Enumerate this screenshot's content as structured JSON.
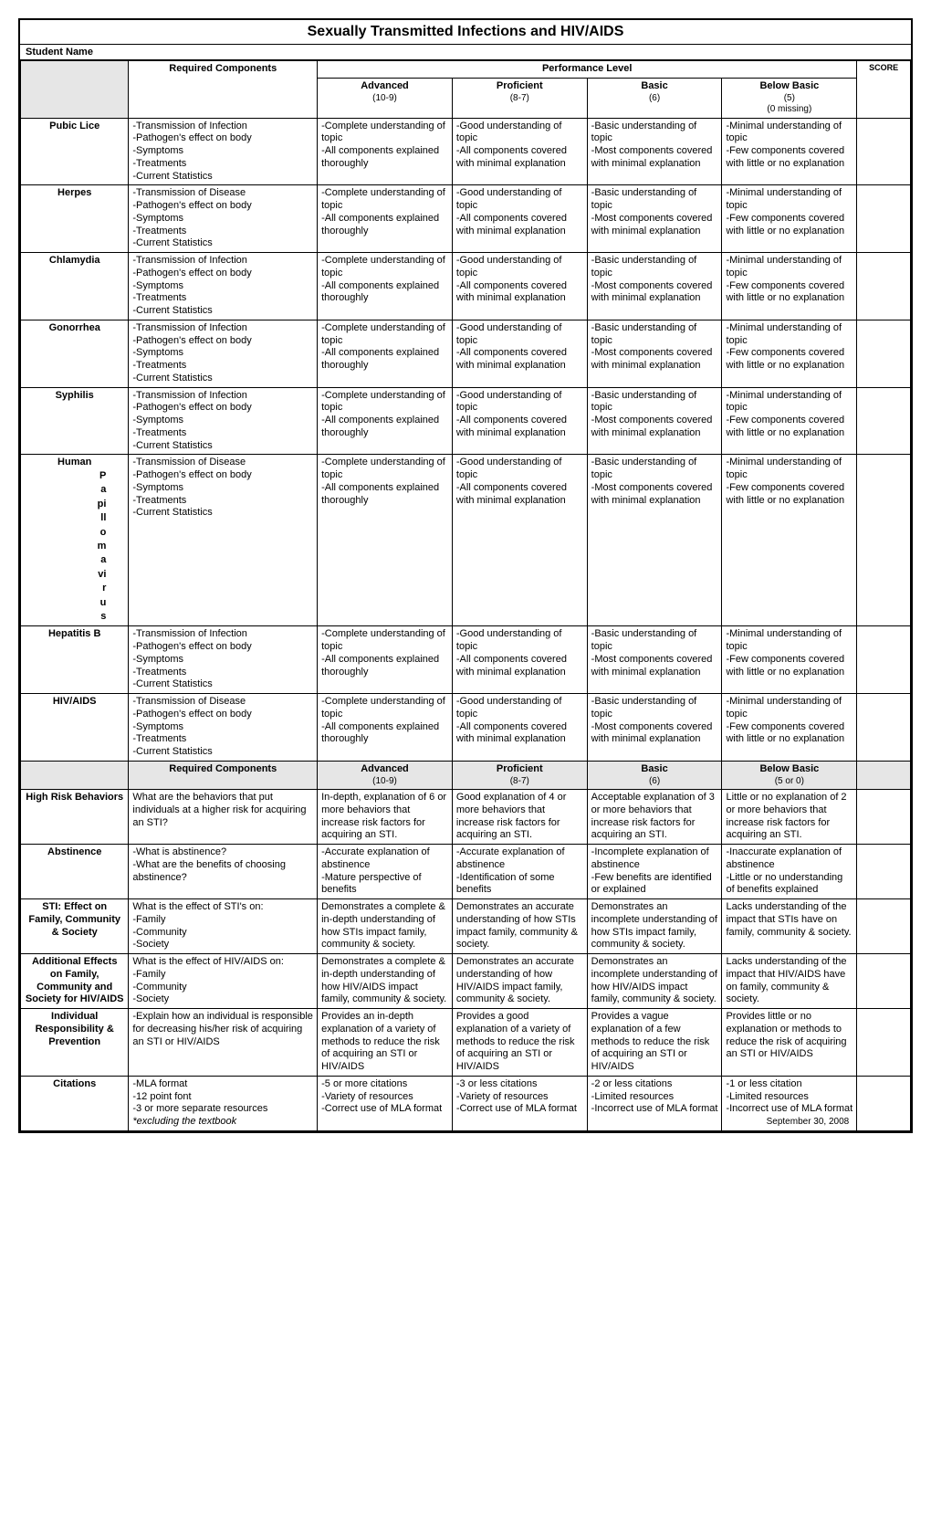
{
  "title": "Sexually Transmitted Infections and HIV/AIDS",
  "student_name_label": "Student Name",
  "headers": {
    "required_components": "Required Components",
    "performance_level": "Performance Level",
    "score": "SCORE",
    "levels": [
      {
        "name": "Advanced",
        "range": "(10-9)"
      },
      {
        "name": "Proficient",
        "range": "(8-7)"
      },
      {
        "name": "Basic",
        "range": "(6)"
      },
      {
        "name": "Below Basic",
        "range": "(5)\n(0 missing)"
      }
    ],
    "levels2": [
      {
        "name": "Advanced",
        "range": "(10-9)"
      },
      {
        "name": "Proficient",
        "range": "(8-7)"
      },
      {
        "name": "Basic",
        "range": "(6)"
      },
      {
        "name": "Below Basic",
        "range": "(5 or 0)"
      }
    ]
  },
  "components_infection": "-Transmission of Infection\n-Pathogen's effect on body\n-Symptoms\n-Treatments\n-Current Statistics",
  "components_disease": "-Transmission of Disease\n-Pathogen's effect on body\n-Symptoms\n-Treatments\n-Current Statistics",
  "level_text": {
    "advanced": "-Complete understanding of topic\n-All components explained thoroughly",
    "proficient": "-Good understanding of topic\n-All components covered with minimal explanation",
    "basic": "-Basic understanding of topic\n-Most components covered with minimal explanation",
    "below": "-Minimal understanding of topic\n-Few components covered with little or no explanation"
  },
  "topics": [
    {
      "name": "Pubic Lice",
      "comp": "infection"
    },
    {
      "name": "Herpes",
      "comp": "disease"
    },
    {
      "name": "Chlamydia",
      "comp": "infection"
    },
    {
      "name": "Gonorrhea",
      "comp": "infection"
    },
    {
      "name": "Syphilis",
      "comp": "infection"
    },
    {
      "name": "Human",
      "vert": "Papillomavirus",
      "comp": "disease"
    },
    {
      "name": "Hepatitis B",
      "comp": "infection"
    },
    {
      "name": "HIV/AIDS",
      "comp": "disease"
    }
  ],
  "section2": [
    {
      "name": "High Risk Behaviors",
      "req": "What are the behaviors that put individuals at a higher risk for acquiring an STI?",
      "adv": "In-depth, explanation of 6 or more behaviors that increase risk factors for acquiring an STI.",
      "prof": "Good explanation of 4 or more behaviors that increase risk factors for acquiring an STI.",
      "basic": "Acceptable explanation of 3 or more behaviors that increase risk factors for acquiring an STI.",
      "below": "Little or no explanation of 2 or more behaviors that increase risk factors for acquiring an STI."
    },
    {
      "name": "Abstinence",
      "req": "-What is abstinence?\n-What are the benefits of choosing abstinence?",
      "adv": "-Accurate explanation of abstinence\n-Mature perspective of benefits",
      "prof": "-Accurate explanation of abstinence\n-Identification of some benefits",
      "basic": "-Incomplete explanation of abstinence\n-Few benefits are identified or explained",
      "below": "-Inaccurate explanation of abstinence\n-Little or no understanding of benefits explained"
    },
    {
      "name": "STI: Effect on Family, Community & Society",
      "req": "What is the effect of STI's on:\n-Family\n-Community\n-Society",
      "adv": "Demonstrates a complete & in-depth understanding of how STIs impact family, community & society.",
      "prof": "Demonstrates an accurate understanding of how STIs impact family, community & society.",
      "basic": "Demonstrates an incomplete understanding of how STIs impact family, community & society.",
      "below": "Lacks understanding of the impact that STIs have on family, community & society."
    },
    {
      "name": "Additional Effects on Family, Community and Society for HIV/AIDS",
      "req": "What is the effect of HIV/AIDS on:\n-Family\n-Community\n-Society",
      "adv": "Demonstrates a complete & in-depth understanding of how HIV/AIDS impact family, community & society.",
      "prof": "Demonstrates an accurate understanding of how HIV/AIDS impact family, community & society.",
      "basic": "Demonstrates an incomplete understanding of how HIV/AIDS impact family, community & society.",
      "below": "Lacks understanding of the impact that HIV/AIDS have on family, community & society."
    },
    {
      "name": "Individual Responsibility & Prevention",
      "req": "-Explain how an individual is responsible for decreasing his/her risk of acquiring an STI or HIV/AIDS",
      "adv": "Provides an in-depth explanation of a variety of methods to reduce the risk of acquiring an STI or HIV/AIDS",
      "prof": "Provides a good explanation of a variety of methods to reduce the risk of acquiring an STI or HIV/AIDS",
      "basic": "Provides a vague explanation of a few methods to reduce the risk of acquiring an STI or HIV/AIDS",
      "below": "Provides little or no explanation or methods to reduce the risk of acquiring an STI or HIV/AIDS"
    },
    {
      "name": "Citations",
      "req": "-MLA format\n-12 point font\n-3 or more separate resources",
      "req_italic": "   *excluding the textbook",
      "adv": "-5 or more citations\n-Variety of resources\n-Correct use of MLA format",
      "prof": "-3 or less citations\n-Variety of resources\n-Correct use of MLA format",
      "basic": "-2 or less citations\n-Limited resources\n-Incorrect use of MLA format",
      "below": "-1 or less citation\n-Limited resources\n-Incorrect use of MLA format"
    }
  ],
  "footer_date": "September 30, 2008"
}
